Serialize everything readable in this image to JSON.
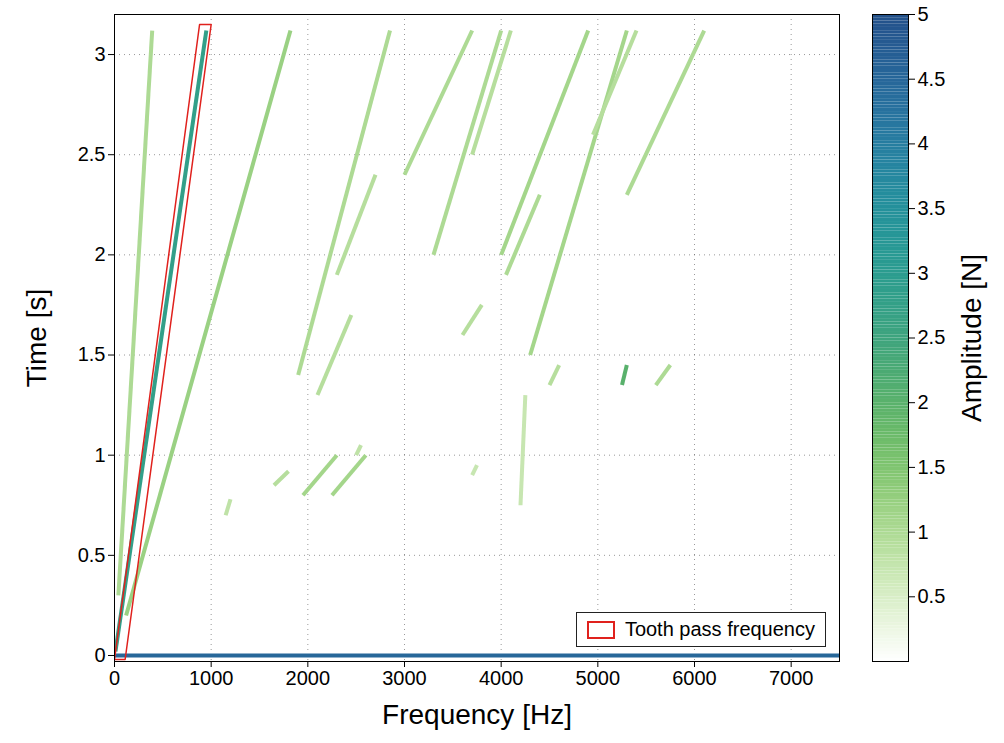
{
  "chart_data": {
    "type": "spectrogram",
    "xlabel": "Frequency [Hz]",
    "ylabel": "Time [s]",
    "xlim": [
      0,
      7500
    ],
    "ylim": [
      -0.03,
      3.2
    ],
    "xticks": [
      0,
      1000,
      2000,
      3000,
      4000,
      5000,
      6000,
      7000
    ],
    "yticks": [
      0,
      0.5,
      1,
      1.5,
      2,
      2.5,
      3
    ],
    "grid": true,
    "legend": "lower right",
    "segments": [
      {
        "frequency": [
          0,
          7500
        ],
        "time": [
          0,
          0
        ],
        "amplitude": 4.5
      },
      {
        "frequency": [
          10,
          950
        ],
        "time": [
          0.02,
          3.12
        ],
        "amplitude": 2.8
      },
      {
        "frequency": [
          40,
          390
        ],
        "time": [
          0.3,
          3.12
        ],
        "amplitude": 1.0
      },
      {
        "frequency": [
          120,
          1820
        ],
        "time": [
          0.2,
          3.12
        ],
        "amplitude": 1.2
      },
      {
        "frequency": [
          1150,
          1200
        ],
        "time": [
          0.7,
          0.78
        ],
        "amplitude": 0.8
      },
      {
        "frequency": [
          1650,
          1800
        ],
        "time": [
          0.85,
          0.92
        ],
        "amplitude": 0.9
      },
      {
        "frequency": [
          1950,
          2300
        ],
        "time": [
          0.8,
          1.0
        ],
        "amplitude": 1.1
      },
      {
        "frequency": [
          2250,
          2600
        ],
        "time": [
          0.8,
          1.0
        ],
        "amplitude": 1.1
      },
      {
        "frequency": [
          1900,
          2850
        ],
        "time": [
          1.4,
          3.12
        ],
        "amplitude": 1.0
      },
      {
        "frequency": [
          2100,
          2450
        ],
        "time": [
          1.3,
          1.7
        ],
        "amplitude": 0.9
      },
      {
        "frequency": [
          2300,
          2700
        ],
        "time": [
          1.9,
          2.4
        ],
        "amplitude": 0.9
      },
      {
        "frequency": [
          3000,
          3700
        ],
        "time": [
          2.4,
          3.12
        ],
        "amplitude": 1.0
      },
      {
        "frequency": [
          3300,
          4000
        ],
        "time": [
          2.0,
          3.12
        ],
        "amplitude": 1.0
      },
      {
        "frequency": [
          3700,
          4100
        ],
        "time": [
          2.5,
          3.12
        ],
        "amplitude": 0.9
      },
      {
        "frequency": [
          4000,
          4900
        ],
        "time": [
          2.0,
          3.12
        ],
        "amplitude": 1.1
      },
      {
        "frequency": [
          4300,
          5300
        ],
        "time": [
          1.5,
          3.12
        ],
        "amplitude": 1.1
      },
      {
        "frequency": [
          4950,
          5400
        ],
        "time": [
          2.6,
          3.12
        ],
        "amplitude": 0.9
      },
      {
        "frequency": [
          5300,
          6100
        ],
        "time": [
          2.3,
          3.12
        ],
        "amplitude": 1.0
      },
      {
        "frequency": [
          3600,
          3800
        ],
        "time": [
          1.6,
          1.75
        ],
        "amplitude": 0.9
      },
      {
        "frequency": [
          4050,
          4400
        ],
        "time": [
          1.9,
          2.3
        ],
        "amplitude": 1.0
      },
      {
        "frequency": [
          4200,
          4250
        ],
        "time": [
          0.75,
          1.3
        ],
        "amplitude": 0.7
      },
      {
        "frequency": [
          4500,
          4600
        ],
        "time": [
          1.35,
          1.45
        ],
        "amplitude": 0.9
      },
      {
        "frequency": [
          5250,
          5300
        ],
        "time": [
          1.35,
          1.45
        ],
        "amplitude": 2.0
      },
      {
        "frequency": [
          5600,
          5750
        ],
        "time": [
          1.35,
          1.45
        ],
        "amplitude": 1.0
      },
      {
        "frequency": [
          2500,
          2550
        ],
        "time": [
          1.0,
          1.05
        ],
        "amplitude": 0.8
      },
      {
        "frequency": [
          3700,
          3750
        ],
        "time": [
          0.9,
          0.95
        ],
        "amplitude": 0.7
      }
    ],
    "highlight": {
      "label": "Tooth pass frequency",
      "color": "#e0211d",
      "frequency": [
        0,
        110,
        1000,
        880
      ],
      "time": [
        -0.02,
        -0.02,
        3.15,
        3.15
      ]
    },
    "colorbar": {
      "label": "Amplitude [N]",
      "lim": [
        0,
        5
      ],
      "ticks": [
        0.5,
        1,
        1.5,
        2,
        2.5,
        3,
        3.5,
        4,
        4.5,
        5
      ]
    }
  }
}
